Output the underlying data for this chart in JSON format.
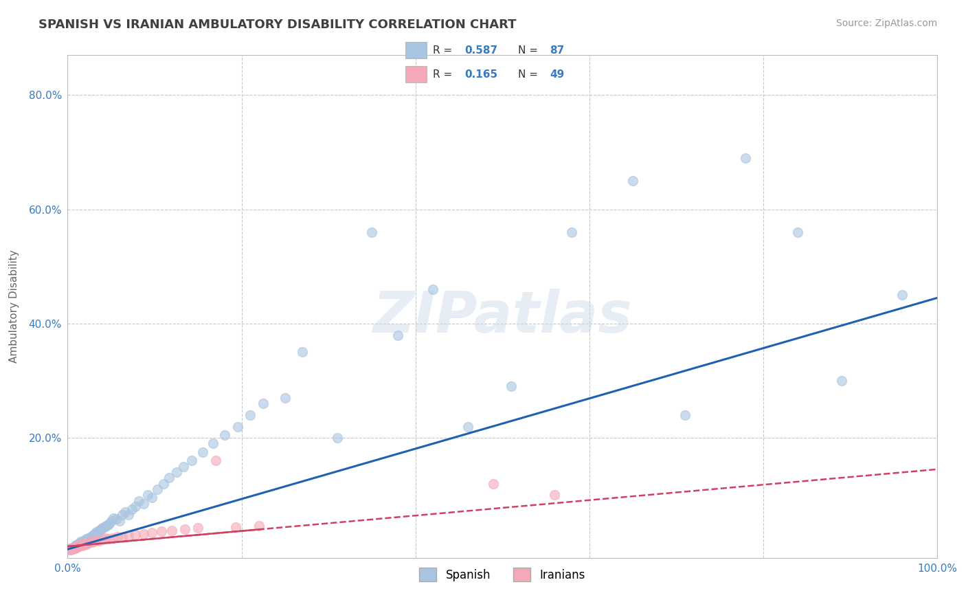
{
  "title": "SPANISH VS IRANIAN AMBULATORY DISABILITY CORRELATION CHART",
  "source": "Source: ZipAtlas.com",
  "ylabel": "Ambulatory Disability",
  "xlabel": "",
  "watermark": "ZIPatlas",
  "background_color": "#ffffff",
  "plot_bg_color": "#ffffff",
  "grid_color": "#c8c8c8",
  "spanish_color": "#a8c4e0",
  "iranian_color": "#f4a8b8",
  "spanish_line_color": "#2060b0",
  "iranian_line_color": "#d04060",
  "spanish_R": 0.587,
  "spanish_N": 87,
  "iranian_R": 0.165,
  "iranian_N": 49,
  "title_color": "#404040",
  "legend_text_color": "#3a7abf",
  "xlim": [
    0.0,
    1.0
  ],
  "ylim": [
    -0.01,
    0.87
  ],
  "xticks": [
    0.0,
    0.2,
    0.4,
    0.6,
    0.8,
    1.0
  ],
  "xtick_labels": [
    "0.0%",
    "",
    "",
    "",
    "",
    "100.0%"
  ],
  "ytick_labels": [
    "20.0%",
    "40.0%",
    "60.0%",
    "80.0%"
  ],
  "yticks": [
    0.2,
    0.4,
    0.6,
    0.8
  ],
  "spanish_line_x0": 0.0,
  "spanish_line_y0": 0.005,
  "spanish_line_x1": 1.0,
  "spanish_line_y1": 0.445,
  "iranian_line_x0": 0.0,
  "iranian_line_y0": 0.01,
  "iranian_line_x1": 1.0,
  "iranian_line_y1": 0.145,
  "spanish_x": [
    0.002,
    0.003,
    0.004,
    0.005,
    0.006,
    0.006,
    0.007,
    0.007,
    0.008,
    0.008,
    0.009,
    0.009,
    0.01,
    0.01,
    0.011,
    0.011,
    0.012,
    0.012,
    0.013,
    0.013,
    0.014,
    0.015,
    0.015,
    0.016,
    0.017,
    0.018,
    0.019,
    0.02,
    0.021,
    0.022,
    0.023,
    0.024,
    0.025,
    0.026,
    0.028,
    0.029,
    0.03,
    0.031,
    0.033,
    0.035,
    0.036,
    0.038,
    0.04,
    0.042,
    0.044,
    0.046,
    0.048,
    0.05,
    0.053,
    0.056,
    0.06,
    0.063,
    0.066,
    0.07,
    0.074,
    0.078,
    0.082,
    0.087,
    0.092,
    0.097,
    0.103,
    0.11,
    0.117,
    0.125,
    0.133,
    0.143,
    0.155,
    0.167,
    0.181,
    0.196,
    0.21,
    0.225,
    0.25,
    0.27,
    0.31,
    0.35,
    0.38,
    0.42,
    0.46,
    0.51,
    0.58,
    0.65,
    0.71,
    0.78,
    0.84,
    0.89,
    0.96
  ],
  "spanish_y": [
    0.005,
    0.006,
    0.005,
    0.007,
    0.006,
    0.008,
    0.007,
    0.009,
    0.008,
    0.01,
    0.009,
    0.011,
    0.01,
    0.012,
    0.011,
    0.013,
    0.012,
    0.014,
    0.013,
    0.015,
    0.014,
    0.016,
    0.018,
    0.017,
    0.019,
    0.018,
    0.02,
    0.022,
    0.021,
    0.023,
    0.022,
    0.025,
    0.024,
    0.026,
    0.028,
    0.027,
    0.03,
    0.032,
    0.035,
    0.033,
    0.038,
    0.04,
    0.042,
    0.044,
    0.046,
    0.048,
    0.05,
    0.055,
    0.06,
    0.058,
    0.055,
    0.065,
    0.07,
    0.065,
    0.075,
    0.08,
    0.09,
    0.085,
    0.1,
    0.095,
    0.11,
    0.12,
    0.13,
    0.14,
    0.15,
    0.16,
    0.175,
    0.19,
    0.205,
    0.22,
    0.24,
    0.26,
    0.27,
    0.35,
    0.2,
    0.56,
    0.38,
    0.46,
    0.22,
    0.29,
    0.56,
    0.65,
    0.24,
    0.69,
    0.56,
    0.3,
    0.45
  ],
  "iranian_x": [
    0.002,
    0.003,
    0.004,
    0.005,
    0.005,
    0.006,
    0.007,
    0.007,
    0.008,
    0.009,
    0.01,
    0.01,
    0.011,
    0.012,
    0.013,
    0.014,
    0.015,
    0.016,
    0.017,
    0.018,
    0.019,
    0.02,
    0.021,
    0.022,
    0.024,
    0.026,
    0.028,
    0.03,
    0.033,
    0.036,
    0.04,
    0.043,
    0.047,
    0.052,
    0.057,
    0.063,
    0.07,
    0.078,
    0.087,
    0.097,
    0.108,
    0.12,
    0.135,
    0.15,
    0.17,
    0.193,
    0.22,
    0.49,
    0.56
  ],
  "iranian_y": [
    0.004,
    0.005,
    0.004,
    0.006,
    0.007,
    0.005,
    0.006,
    0.008,
    0.007,
    0.009,
    0.008,
    0.01,
    0.009,
    0.011,
    0.01,
    0.012,
    0.013,
    0.011,
    0.012,
    0.014,
    0.013,
    0.015,
    0.016,
    0.014,
    0.016,
    0.018,
    0.017,
    0.019,
    0.021,
    0.02,
    0.022,
    0.024,
    0.023,
    0.025,
    0.027,
    0.026,
    0.028,
    0.03,
    0.032,
    0.034,
    0.036,
    0.038,
    0.04,
    0.042,
    0.16,
    0.044,
    0.046,
    0.12,
    0.1
  ]
}
